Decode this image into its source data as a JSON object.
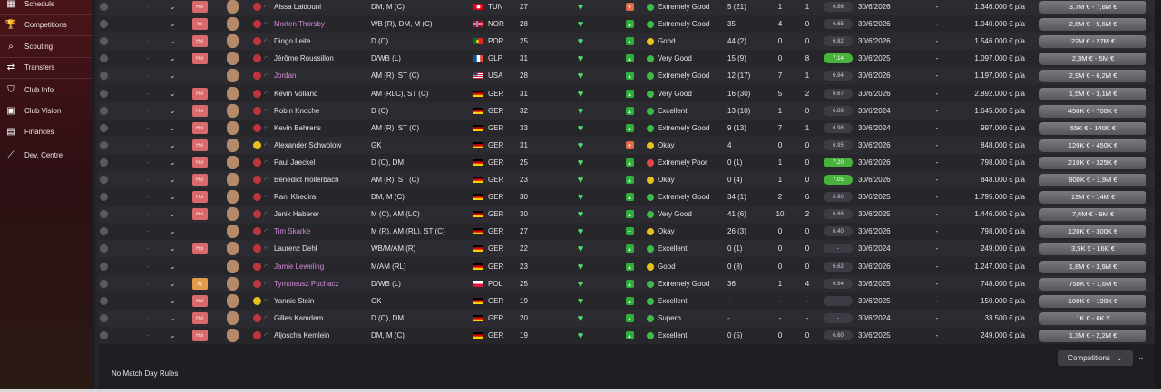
{
  "sidebar": {
    "items": [
      {
        "label": "Schedule",
        "icon": "calendar-icon",
        "glyph": "▦"
      },
      {
        "label": "Competitions",
        "icon": "trophy-icon",
        "glyph": "🏆"
      },
      {
        "label": "Scouting",
        "icon": "binoculars-icon",
        "glyph": "⌕"
      },
      {
        "label": "Transfers",
        "icon": "transfer-icon",
        "glyph": "⇄"
      },
      {
        "label": "Club Info",
        "icon": "shield-icon",
        "glyph": "⛉"
      },
      {
        "label": "Club Vision",
        "icon": "vision-icon",
        "glyph": "▣"
      },
      {
        "label": "Finances",
        "icon": "finances-icon",
        "glyph": "▤"
      },
      {
        "label": "Dev. Centre",
        "icon": "dev-centre-icon",
        "glyph": "⟋"
      }
    ]
  },
  "players": [
    {
      "dash": "-",
      "tag": "Hol",
      "name": "Aissa Laidouni",
      "link": false,
      "badge": "red",
      "pos": "DM, M (C)",
      "nat": "TUN",
      "flag": "tun",
      "age": "27",
      "trend": "down",
      "form": "Extremely Good",
      "form_color": "green",
      "apps": "5 (21)",
      "goals": "1",
      "assists": "1",
      "rating": "6.86",
      "rating_green": false,
      "expires": "30/6/2026",
      "dash2": "-",
      "wage": "1.346.000 € p/a",
      "value": "3,7M € - 7,8M €"
    },
    {
      "dash": "-",
      "tag": "Int",
      "name": "Morten Thorsby",
      "link": true,
      "badge": "red",
      "pos": "WB (R), DM, M (C)",
      "nat": "NOR",
      "flag": "nor",
      "age": "28",
      "trend": "up",
      "form": "Extremely Good",
      "form_color": "green",
      "apps": "35",
      "goals": "4",
      "assists": "0",
      "rating": "6.65",
      "rating_green": false,
      "expires": "30/6/2026",
      "dash2": "-",
      "wage": "1.040.000 € p/a",
      "value": "2,6M € - 5,6M €"
    },
    {
      "dash": "-",
      "tag": "Hol",
      "name": "Diogo Leite",
      "link": false,
      "badge": "red",
      "pos": "D (C)",
      "nat": "POR",
      "flag": "por",
      "age": "25",
      "trend": "up",
      "form": "Good",
      "form_color": "yellow",
      "apps": "44 (2)",
      "goals": "0",
      "assists": "0",
      "rating": "6.82",
      "rating_green": false,
      "expires": "30/6/2026",
      "dash2": "-",
      "wage": "1.546.000 € p/a",
      "value": "22M € - 27M €"
    },
    {
      "dash": "-",
      "tag": "Hol",
      "name": "Jérôme Roussillon",
      "link": false,
      "badge": "red",
      "pos": "D/WB (L)",
      "nat": "GLP",
      "flag": "fra",
      "age": "31",
      "trend": "up",
      "form": "Very Good",
      "form_color": "green",
      "apps": "15 (9)",
      "goals": "0",
      "assists": "8",
      "rating": "7.14",
      "rating_green": true,
      "expires": "30/6/2025",
      "dash2": "-",
      "wage": "1.097.000 € p/a",
      "value": "2,3M € - 5M €"
    },
    {
      "dash": "-",
      "tag": "",
      "name": "Jordan",
      "link": true,
      "badge": "red",
      "pos": "AM (R), ST (C)",
      "nat": "USA",
      "flag": "usa",
      "age": "28",
      "trend": "up",
      "form": "Extremely Good",
      "form_color": "green",
      "apps": "12 (17)",
      "goals": "7",
      "assists": "1",
      "rating": "6.94",
      "rating_green": false,
      "expires": "30/6/2026",
      "dash2": "-",
      "wage": "1.197.000 € p/a",
      "value": "2,9M € - 6,2M €"
    },
    {
      "dash": "-",
      "tag": "Hol",
      "name": "Kevin Volland",
      "link": false,
      "badge": "red",
      "pos": "AM (RLC), ST (C)",
      "nat": "GER",
      "flag": "ger",
      "age": "31",
      "trend": "up",
      "form": "Very Good",
      "form_color": "green",
      "apps": "16 (30)",
      "goals": "5",
      "assists": "2",
      "rating": "6.67",
      "rating_green": false,
      "expires": "30/6/2026",
      "dash2": "-",
      "wage": "2.892.000 € p/a",
      "value": "1,5M € - 3,1M €"
    },
    {
      "dash": "-",
      "tag": "Hol",
      "name": "Robin Knoche",
      "link": false,
      "badge": "red",
      "pos": "D (C)",
      "nat": "GER",
      "flag": "ger",
      "age": "32",
      "trend": "up",
      "form": "Excellent",
      "form_color": "green",
      "apps": "13 (10)",
      "goals": "1",
      "assists": "0",
      "rating": "6.89",
      "rating_green": false,
      "expires": "30/6/2024",
      "dash2": "-",
      "wage": "1.645.000 € p/a",
      "value": "450K € - 700K €"
    },
    {
      "dash": "-",
      "tag": "Hol",
      "name": "Kevin Behrens",
      "link": false,
      "badge": "red",
      "pos": "AM (R), ST (C)",
      "nat": "GER",
      "flag": "ger",
      "age": "33",
      "trend": "up",
      "form": "Extremely Good",
      "form_color": "green",
      "apps": "9 (13)",
      "goals": "7",
      "assists": "1",
      "rating": "6.98",
      "rating_green": false,
      "expires": "30/6/2024",
      "dash2": "-",
      "wage": "997.000 € p/a",
      "value": "55K € - 140K €"
    },
    {
      "dash": "-",
      "tag": "Hol",
      "name": "Alexander Schwolow",
      "link": false,
      "badge": "yellow",
      "pos": "GK",
      "nat": "GER",
      "flag": "ger",
      "age": "31",
      "trend": "down",
      "form": "Okay",
      "form_color": "yellow",
      "apps": "4",
      "goals": "0",
      "assists": "0",
      "rating": "6.95",
      "rating_green": false,
      "expires": "30/6/2026",
      "dash2": "-",
      "wage": "848.000 € p/a",
      "value": "120K € - 450K €"
    },
    {
      "dash": "-",
      "tag": "Hol",
      "name": "Paul Jaeckel",
      "link": false,
      "badge": "red",
      "pos": "D (C), DM",
      "nat": "GER",
      "flag": "ger",
      "age": "25",
      "trend": "up",
      "form": "Extremely Poor",
      "form_color": "red",
      "apps": "0 (1)",
      "goals": "1",
      "assists": "0",
      "rating": "7.20",
      "rating_green": true,
      "expires": "30/6/2026",
      "dash2": "-",
      "wage": "798.000 € p/a",
      "value": "210K € - 325K €"
    },
    {
      "dash": "-",
      "tag": "Hol",
      "name": "Benedict Hollerbach",
      "link": false,
      "badge": "red",
      "pos": "AM (R), ST (C)",
      "nat": "GER",
      "flag": "ger",
      "age": "23",
      "trend": "up",
      "form": "Okay",
      "form_color": "yellow",
      "apps": "0 (4)",
      "goals": "1",
      "assists": "0",
      "rating": "7.05",
      "rating_green": true,
      "expires": "30/6/2026",
      "dash2": "-",
      "wage": "848.000 € p/a",
      "value": "900K € - 1,9M €"
    },
    {
      "dash": "-",
      "tag": "Hol",
      "name": "Rani Khedira",
      "link": false,
      "badge": "red",
      "pos": "DM, M (C)",
      "nat": "GER",
      "flag": "ger",
      "age": "30",
      "trend": "up",
      "form": "Extremely Good",
      "form_color": "green",
      "apps": "34 (1)",
      "goals": "2",
      "assists": "6",
      "rating": "6.96",
      "rating_green": false,
      "expires": "30/6/2025",
      "dash2": "-",
      "wage": "1.795.000 € p/a",
      "value": "13M € - 14M €"
    },
    {
      "dash": "-",
      "tag": "Hol",
      "name": "Janik Haberer",
      "link": false,
      "badge": "red",
      "pos": "M (C), AM (LC)",
      "nat": "GER",
      "flag": "ger",
      "age": "30",
      "trend": "up",
      "form": "Very Good",
      "form_color": "green",
      "apps": "41 (6)",
      "goals": "10",
      "assists": "2",
      "rating": "6.88",
      "rating_green": false,
      "expires": "30/6/2025",
      "dash2": "-",
      "wage": "1.446.000 € p/a",
      "value": "7,4M € - 9M €"
    },
    {
      "dash": "-",
      "tag": "",
      "name": "Tim Skarke",
      "link": true,
      "badge": "red",
      "pos": "M (R), AM (RL), ST (C)",
      "nat": "GER",
      "flag": "ger",
      "age": "27",
      "trend": "flat",
      "form": "Okay",
      "form_color": "yellow",
      "apps": "26 (3)",
      "goals": "0",
      "assists": "0",
      "rating": "6.40",
      "rating_green": false,
      "expires": "30/6/2026",
      "dash2": "-",
      "wage": "798.000 € p/a",
      "value": "120K € - 300K €"
    },
    {
      "dash": "-",
      "tag": "Hol",
      "name": "Laurenz Dehl",
      "link": false,
      "badge": "red",
      "pos": "WB/M/AM (R)",
      "nat": "GER",
      "flag": "ger",
      "age": "22",
      "trend": "up",
      "form": "Excellent",
      "form_color": "green",
      "apps": "0 (1)",
      "goals": "0",
      "assists": "0",
      "rating": "-",
      "rating_green": false,
      "expires": "30/6/2024",
      "dash2": "-",
      "wage": "249.000 € p/a",
      "value": "3,5K € - 16K €"
    },
    {
      "dash": "-",
      "tag": "",
      "name": "Jamie Leweling",
      "link": true,
      "badge": "red",
      "pos": "M/AM (RL)",
      "nat": "GER",
      "flag": "ger",
      "age": "23",
      "trend": "up",
      "form": "Good",
      "form_color": "yellow",
      "apps": "0 (8)",
      "goals": "0",
      "assists": "0",
      "rating": "6.62",
      "rating_green": false,
      "expires": "30/6/2026",
      "dash2": "-",
      "wage": "1.247.000 € p/a",
      "value": "1,8M € - 3,9M €"
    },
    {
      "dash": "-",
      "tag": "Inj",
      "name": "Tymoteusz Puchacz",
      "link": true,
      "badge": "red",
      "pos": "D/WB (L)",
      "nat": "POL",
      "flag": "pol",
      "age": "25",
      "trend": "up",
      "form": "Extremely Good",
      "form_color": "green",
      "apps": "36",
      "goals": "1",
      "assists": "4",
      "rating": "6.94",
      "rating_green": false,
      "expires": "30/6/2025",
      "dash2": "-",
      "wage": "748.000 € p/a",
      "value": "750K € - 1,6M €"
    },
    {
      "dash": "-",
      "tag": "Hol",
      "name": "Yannic Stein",
      "link": false,
      "badge": "yellow",
      "pos": "GK",
      "nat": "GER",
      "flag": "ger",
      "age": "19",
      "trend": "up",
      "form": "Excellent",
      "form_color": "green",
      "apps": "-",
      "goals": "-",
      "assists": "-",
      "rating": "-",
      "rating_green": false,
      "expires": "30/6/2025",
      "dash2": "-",
      "wage": "150.000 € p/a",
      "value": "100K € - 190K €"
    },
    {
      "dash": "-",
      "tag": "Hol",
      "name": "Gilles Kamdem",
      "link": false,
      "badge": "red",
      "pos": "D (C), DM",
      "nat": "GER",
      "flag": "ger",
      "age": "20",
      "trend": "up",
      "form": "Superb",
      "form_color": "green",
      "apps": "-",
      "goals": "-",
      "assists": "-",
      "rating": "-",
      "rating_green": false,
      "expires": "30/6/2024",
      "dash2": "-",
      "wage": "33.500 € p/a",
      "value": "1K € - 6K €"
    },
    {
      "dash": "-",
      "tag": "Hol",
      "name": "Aljoscha Kemlein",
      "link": false,
      "badge": "red",
      "pos": "DM, M (C)",
      "nat": "GER",
      "flag": "ger",
      "age": "19",
      "trend": "up",
      "form": "Excellent",
      "form_color": "green",
      "apps": "0 (5)",
      "goals": "0",
      "assists": "0",
      "rating": "6.60",
      "rating_green": false,
      "expires": "30/6/2025",
      "dash2": "-",
      "wage": "249.000 € p/a",
      "value": "1,3M € - 2,2M €"
    }
  ],
  "footer": {
    "rules_label": "No Match Day Rules",
    "competitions_label": "Competitions"
  },
  "colors": {
    "accent_link": "#d38ad6",
    "heart": "#4ddc6a",
    "trend_up": "#2fae3c",
    "trend_down": "#e06a45",
    "trend_flat": "#2fae3c",
    "rating_green": "#48b23c"
  }
}
